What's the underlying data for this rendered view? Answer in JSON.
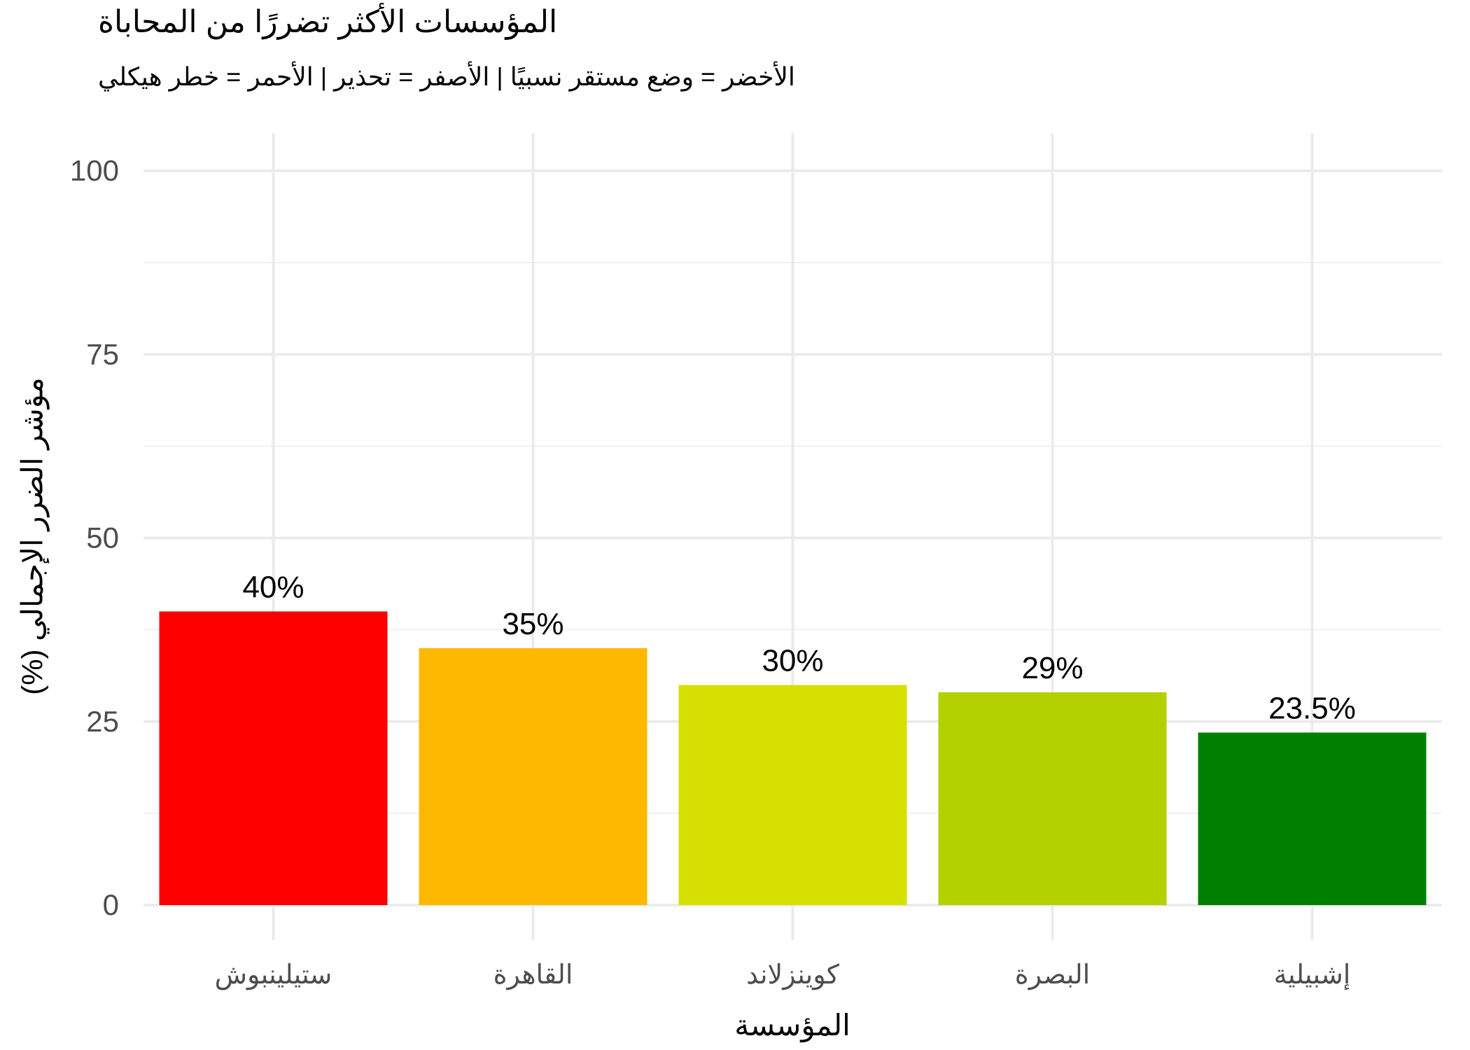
{
  "chart_data": {
    "type": "bar",
    "title": "المؤسسات الأكثر تضررًا من المحاباة",
    "subtitle": "الأخضر = وضع مستقر نسبيًا | الأصفر = تحذير | الأحمر = خطر هيكلي",
    "xlabel": "المؤسسة",
    "ylabel": "مؤشر الضرر الإجمالي (%)",
    "categories": [
      "ستيلينبوش",
      "القاهرة",
      "كوينزلاند",
      "البصرة",
      "إشبيلية"
    ],
    "values": [
      40,
      35,
      30,
      29,
      23.5
    ],
    "value_labels": [
      "40%",
      "35%",
      "30%",
      "29%",
      "23.5%"
    ],
    "bar_colors": [
      "#FF0000",
      "#FFB800",
      "#D6E000",
      "#B3D100",
      "#008000"
    ],
    "ylim": [
      0,
      100
    ],
    "yticks": [
      0,
      25,
      50,
      75,
      100
    ],
    "yticks_minor": [
      12.5,
      37.5,
      62.5,
      87.5
    ],
    "grid": "on",
    "legend": "none",
    "text_direction": "rtl"
  },
  "style": {
    "background_color": "#FFFFFF",
    "grid_major_color": "#EBEBEB",
    "grid_minor_color": "#F0F0F0",
    "tick_label_color": "#4D4D4D",
    "text_color": "#000000"
  }
}
